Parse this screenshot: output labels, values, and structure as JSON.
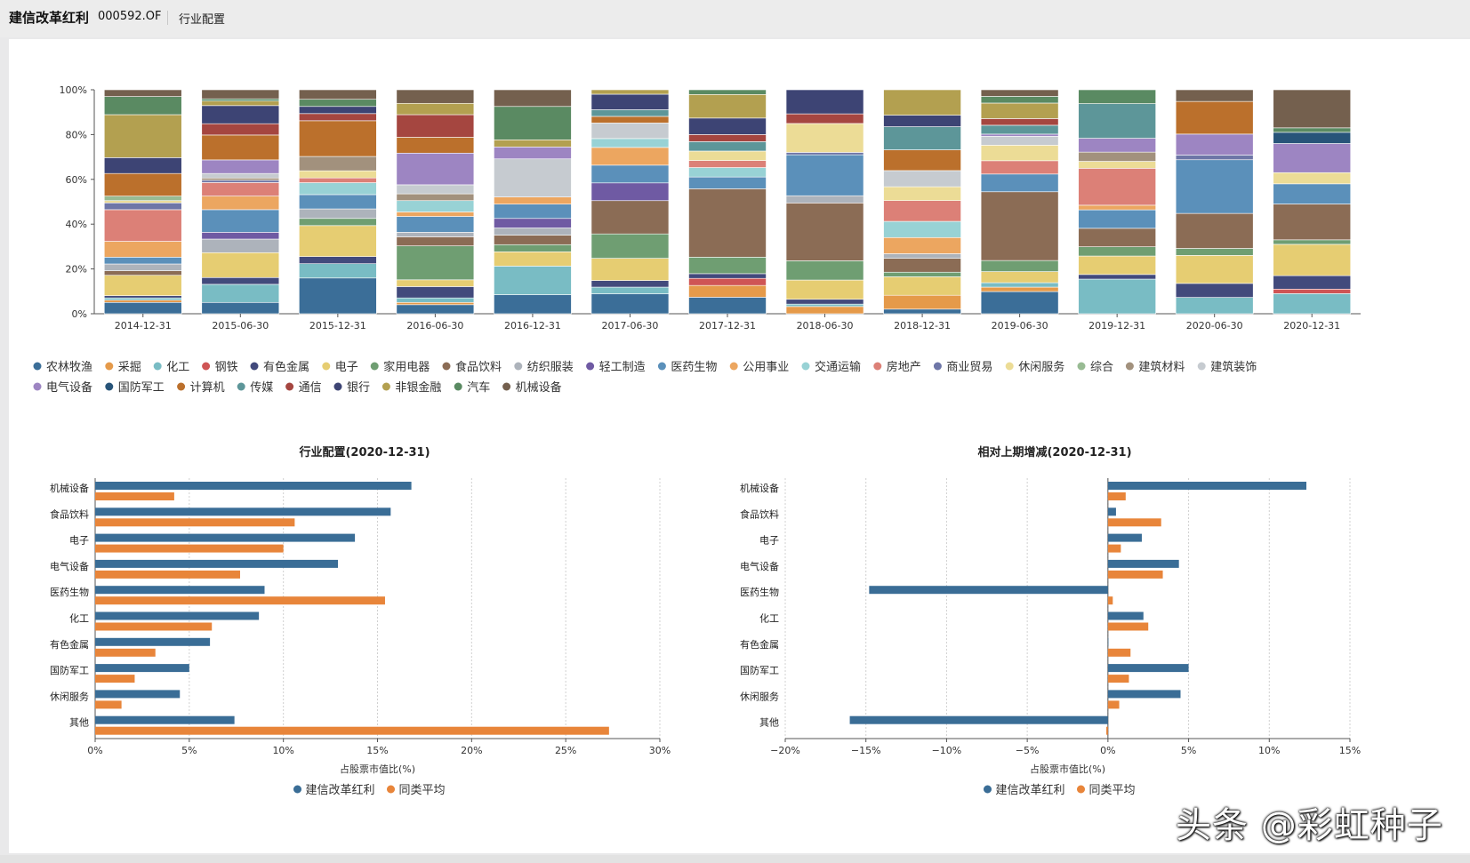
{
  "header": {
    "fund_name": "建信改革红利",
    "fund_code": "000592.OF",
    "tab": "行业配置"
  },
  "colors": {
    "农林牧渔": "#3b6e98",
    "采掘": "#e59a4a",
    "化工": "#79bcc4",
    "钢铁": "#cf5555",
    "有色金属": "#424a7c",
    "电子": "#e6cd72",
    "家用电器": "#6f9e72",
    "食品饮料": "#8b6c55",
    "纺织服装": "#adb3bb",
    "轻工制造": "#6f5aa3",
    "医药生物": "#5b90ba",
    "公用事业": "#eca660",
    "交通运输": "#98d2d5",
    "房地产": "#dc8077",
    "商业贸易": "#6e76a7",
    "休闲服务": "#ecdc96",
    "综合": "#98bb93",
    "建筑材料": "#a2917d",
    "建筑装饰": "#c6cbd0",
    "电气设备": "#9d85c2",
    "国防军工": "#275479",
    "计算机": "#bb702c",
    "传媒": "#5d9699",
    "通信": "#a54640",
    "银行": "#3d4474",
    "非银金融": "#b3a050",
    "汽车": "#5a8a62",
    "机械设备": "#74604e",
    "fund": "#3a6d96",
    "peer": "#e8853a"
  },
  "chart_data": [
    {
      "type": "bar",
      "stacked": true,
      "normalized": true,
      "title": "",
      "xlabel": "",
      "ylabel": "",
      "ylim": [
        0,
        100
      ],
      "y_ticks": [
        "0%",
        "20%",
        "40%",
        "60%",
        "80%",
        "100%"
      ],
      "categories": [
        "2014-12-31",
        "2015-06-30",
        "2015-12-31",
        "2016-06-30",
        "2016-12-31",
        "2017-06-30",
        "2017-12-31",
        "2018-06-30",
        "2018-12-31",
        "2019-06-30",
        "2019-12-31",
        "2020-06-30",
        "2020-12-31"
      ],
      "legend": [
        "农林牧渔",
        "采掘",
        "化工",
        "钢铁",
        "有色金属",
        "电子",
        "家用电器",
        "食品饮料",
        "纺织服装",
        "轻工制造",
        "医药生物",
        "公用事业",
        "交通运输",
        "房地产",
        "商业贸易",
        "休闲服务",
        "综合",
        "建筑材料",
        "建筑装饰",
        "电气设备",
        "国防军工",
        "计算机",
        "传媒",
        "通信",
        "银行",
        "非银金融",
        "汽车",
        "机械设备"
      ],
      "series": [
        {
          "name": "农林牧渔",
          "values": [
            5,
            5,
            15,
            4,
            8,
            9,
            7,
            0,
            2,
            10,
            0,
            0,
            0
          ]
        },
        {
          "name": "采掘",
          "values": [
            1,
            0,
            0,
            1,
            0,
            0,
            5,
            3,
            6,
            2,
            0,
            0,
            0
          ]
        },
        {
          "name": "化工",
          "values": [
            1,
            8,
            6,
            2,
            12,
            3,
            0,
            1,
            0,
            2,
            15,
            7,
            9
          ]
        },
        {
          "name": "钢铁",
          "values": [
            0,
            0,
            0,
            0,
            0,
            0,
            3,
            0,
            0,
            0,
            0,
            0,
            2
          ]
        },
        {
          "name": "有色金属",
          "values": [
            1,
            3,
            3,
            5,
            0,
            3,
            2,
            2,
            0,
            0,
            2,
            6,
            6
          ]
        },
        {
          "name": "电子",
          "values": [
            9,
            11,
            13,
            3,
            6,
            10,
            0,
            8,
            8,
            5,
            8,
            12,
            14
          ]
        },
        {
          "name": "家用电器",
          "values": [
            0,
            0,
            3,
            15,
            3,
            11,
            7,
            8,
            2,
            5,
            4,
            3,
            2
          ]
        },
        {
          "name": "食品饮料",
          "values": [
            2,
            0,
            0,
            4,
            4,
            15,
            29,
            24,
            6,
            31,
            8,
            15,
            16
          ]
        },
        {
          "name": "纺织服装",
          "values": [
            3,
            6,
            4,
            2,
            3,
            0,
            0,
            3,
            2,
            0,
            0,
            0,
            0
          ]
        },
        {
          "name": "轻工制造",
          "values": [
            0,
            3,
            0,
            0,
            4,
            8,
            0,
            0,
            0,
            0,
            0,
            0,
            0
          ]
        },
        {
          "name": "医药生物",
          "values": [
            3,
            10,
            6,
            7,
            6,
            8,
            5,
            17,
            0,
            8,
            8,
            23,
            9
          ]
        },
        {
          "name": "公用事业",
          "values": [
            7,
            6,
            0,
            2,
            3,
            8,
            0,
            0,
            7,
            0,
            2,
            0,
            0
          ]
        },
        {
          "name": "交通运输",
          "values": [
            0,
            0,
            5,
            5,
            0,
            4,
            4,
            0,
            7,
            0,
            0,
            0,
            0
          ]
        },
        {
          "name": "房地产",
          "values": [
            14,
            6,
            2,
            0,
            0,
            0,
            3,
            0,
            9,
            6,
            16,
            0,
            0
          ]
        },
        {
          "name": "商业贸易",
          "values": [
            3,
            1,
            0,
            0,
            0,
            0,
            0,
            1,
            0,
            0,
            0,
            2,
            0
          ]
        },
        {
          "name": "休闲服务",
          "values": [
            1,
            0,
            3,
            0,
            0,
            0,
            4,
            12,
            6,
            7,
            3,
            0,
            5
          ]
        },
        {
          "name": "综合",
          "values": [
            2,
            0,
            0,
            0,
            0,
            0,
            0,
            0,
            0,
            0,
            0,
            0,
            0
          ]
        },
        {
          "name": "建筑材料",
          "values": [
            0,
            1,
            6,
            3,
            0,
            0,
            0,
            0,
            0,
            0,
            4,
            0,
            0
          ]
        },
        {
          "name": "建筑装饰",
          "values": [
            0,
            2,
            0,
            4,
            16,
            7,
            0,
            0,
            7,
            4,
            0,
            0,
            0
          ]
        },
        {
          "name": "电气设备",
          "values": [
            0,
            6,
            0,
            14,
            5,
            0,
            0,
            0,
            0,
            1,
            6,
            9,
            13
          ]
        },
        {
          "name": "国防军工",
          "values": [
            0,
            0,
            0,
            0,
            0,
            0,
            0,
            0,
            0,
            0,
            0,
            0,
            5
          ]
        },
        {
          "name": "计算机",
          "values": [
            10,
            11,
            15,
            7,
            0,
            3,
            0,
            0,
            9,
            0,
            0,
            14,
            0
          ]
        },
        {
          "name": "传媒",
          "values": [
            0,
            0,
            0,
            0,
            0,
            3,
            4,
            0,
            10,
            4,
            15,
            0,
            0
          ]
        },
        {
          "name": "通信",
          "values": [
            0,
            5,
            3,
            10,
            0,
            0,
            3,
            4,
            0,
            3,
            0,
            0,
            0
          ]
        },
        {
          "name": "银行",
          "values": [
            7,
            8,
            3,
            0,
            0,
            7,
            7,
            10,
            5,
            0,
            0,
            0,
            0
          ]
        },
        {
          "name": "非银金融",
          "values": [
            19,
            2,
            0,
            5,
            3,
            2,
            10,
            0,
            11,
            7,
            0,
            0,
            0
          ]
        },
        {
          "name": "汽车",
          "values": [
            8,
            1,
            3,
            0,
            14,
            0,
            2,
            0,
            0,
            3,
            6,
            0,
            2
          ]
        },
        {
          "name": "机械设备",
          "values": [
            3,
            4,
            4,
            6,
            7,
            0,
            0,
            0,
            0,
            3,
            0,
            5,
            17
          ]
        }
      ]
    },
    {
      "type": "bar",
      "orientation": "horizontal",
      "title": "行业配置(2020-12-31)",
      "xlabel": "占股票市值比(%)",
      "xlim": [
        0,
        30
      ],
      "x_ticks": [
        "0%",
        "5%",
        "10%",
        "15%",
        "20%",
        "25%",
        "30%"
      ],
      "categories": [
        "机械设备",
        "食品饮料",
        "电子",
        "电气设备",
        "医药生物",
        "化工",
        "有色金属",
        "国防军工",
        "休闲服务",
        "其他"
      ],
      "series": [
        {
          "name": "建信改革红利",
          "values": [
            16.8,
            15.7,
            13.8,
            12.9,
            9.0,
            8.7,
            6.1,
            5.0,
            4.5,
            7.4
          ]
        },
        {
          "name": "同类平均",
          "values": [
            4.2,
            10.6,
            10.0,
            7.7,
            15.4,
            6.2,
            3.2,
            2.1,
            1.4,
            27.3
          ]
        }
      ]
    },
    {
      "type": "bar",
      "orientation": "horizontal",
      "title": "相对上期增减(2020-12-31)",
      "xlabel": "占股票市值比(%)",
      "xlim": [
        -20,
        15
      ],
      "x_ticks": [
        "−20%",
        "−15%",
        "−10%",
        "−5%",
        "0%",
        "5%",
        "10%",
        "15%"
      ],
      "categories": [
        "机械设备",
        "食品饮料",
        "电子",
        "电气设备",
        "医药生物",
        "化工",
        "有色金属",
        "国防军工",
        "休闲服务",
        "其他"
      ],
      "series": [
        {
          "name": "建信改革红利",
          "values": [
            12.3,
            0.5,
            2.1,
            4.4,
            -14.8,
            2.2,
            0.0,
            5.0,
            4.5,
            -16.0
          ]
        },
        {
          "name": "同类平均",
          "values": [
            1.1,
            3.3,
            0.8,
            3.4,
            0.3,
            2.5,
            1.4,
            1.3,
            0.7,
            -0.1
          ]
        }
      ]
    }
  ],
  "watermark": "头条 @彩虹种子"
}
